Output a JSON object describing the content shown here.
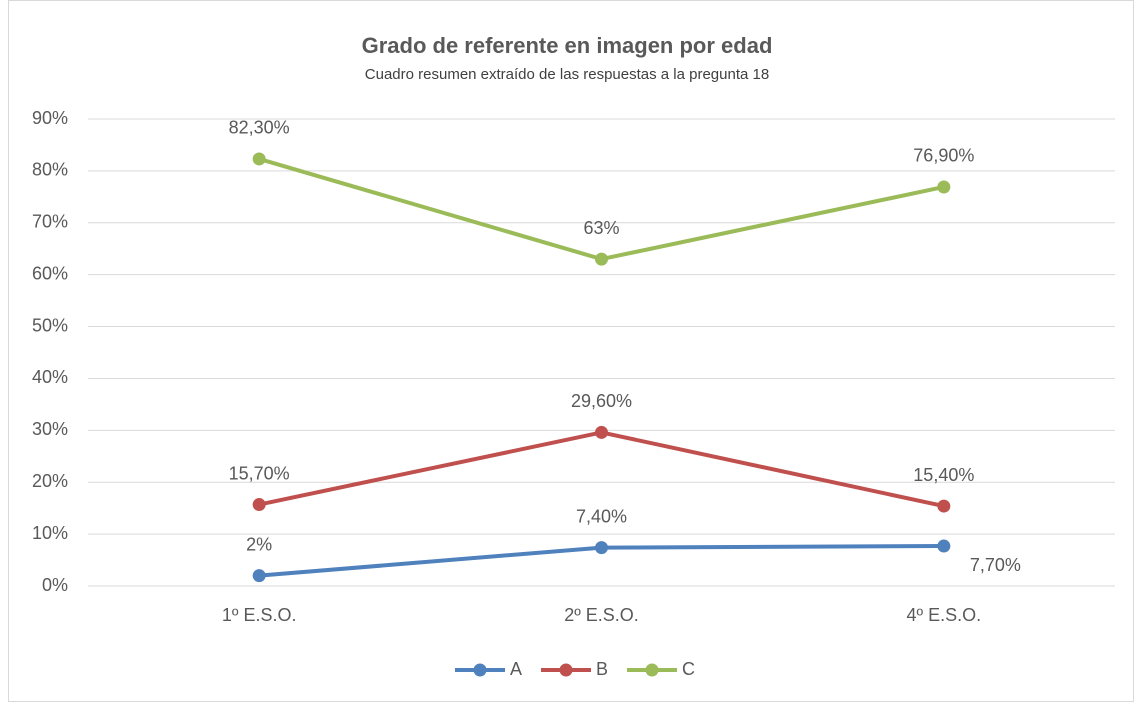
{
  "chart_data": {
    "type": "line",
    "title": "Grado de referente en imagen por edad",
    "subtitle": "Cuadro resumen extraído de las respuestas a la pregunta 18",
    "categories": [
      "1º E.S.O.",
      "2º E.S.O.",
      "4º E.S.O."
    ],
    "series": [
      {
        "name": "A",
        "color": "#4f81bd",
        "values": [
          2,
          7.4,
          7.7
        ],
        "value_labels": [
          "2%",
          "7,40%",
          "7,70%"
        ]
      },
      {
        "name": "B",
        "color": "#c0504d",
        "values": [
          15.7,
          29.6,
          15.4
        ],
        "value_labels": [
          "15,70%",
          "29,60%",
          "15,40%"
        ]
      },
      {
        "name": "C",
        "color": "#9bbb59",
        "values": [
          82.3,
          63,
          76.9
        ],
        "value_labels": [
          "82,30%",
          "63%",
          "76,90%"
        ]
      }
    ],
    "ylim": [
      0,
      90
    ],
    "yticks": [
      {
        "value": 0,
        "label": "0%"
      },
      {
        "value": 10,
        "label": "10%"
      },
      {
        "value": 20,
        "label": "20%"
      },
      {
        "value": 30,
        "label": "30%"
      },
      {
        "value": 40,
        "label": "40%"
      },
      {
        "value": 50,
        "label": "50%"
      },
      {
        "value": 60,
        "label": "60%"
      },
      {
        "value": 70,
        "label": "70%"
      },
      {
        "value": 80,
        "label": "80%"
      },
      {
        "value": 90,
        "label": "90%"
      }
    ],
    "grid": true,
    "legend": "bottom"
  }
}
